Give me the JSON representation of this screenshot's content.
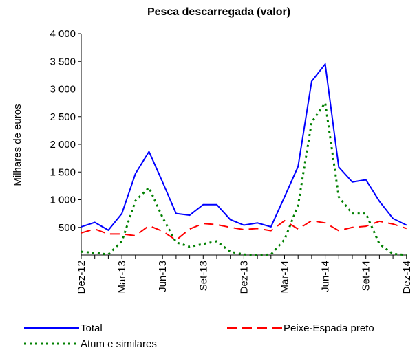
{
  "chart_data": {
    "type": "line",
    "title": "Pesca descarregada (valor)",
    "y_label": "Milhares de euros",
    "categories": [
      "Dez-12",
      null,
      null,
      "Mar-13",
      null,
      null,
      "Jun-13",
      null,
      null,
      "Set-13",
      null,
      null,
      "Dez-13",
      null,
      null,
      "Mar-14",
      null,
      null,
      "Jun-14",
      null,
      null,
      "Set-14",
      null,
      null,
      "Dez-14"
    ],
    "series": [
      {
        "name": "Total",
        "color": "#0000ff",
        "style": "solid",
        "values": [
          510,
          590,
          450,
          750,
          1470,
          1870,
          1320,
          750,
          720,
          910,
          910,
          640,
          540,
          580,
          510,
          1050,
          1600,
          3140,
          3450,
          1590,
          1320,
          1360,
          970,
          660,
          540
        ]
      },
      {
        "name": "Peixe-Espada preto",
        "color": "#ff0000",
        "style": "dashed",
        "values": [
          400,
          470,
          380,
          380,
          350,
          530,
          430,
          270,
          470,
          570,
          550,
          500,
          460,
          480,
          440,
          620,
          470,
          620,
          580,
          440,
          500,
          520,
          610,
          560,
          480
        ]
      },
      {
        "name": "Atum e similares",
        "color": "#008000",
        "style": "dotted",
        "values": [
          60,
          40,
          10,
          250,
          980,
          1220,
          680,
          230,
          150,
          200,
          250,
          60,
          10,
          0,
          10,
          280,
          900,
          2400,
          2750,
          1050,
          750,
          750,
          200,
          20,
          0
        ]
      }
    ],
    "ylim": [
      0,
      4000
    ],
    "yticks": [
      500,
      {
        "value": 1000,
        "label": "1 000"
      },
      {
        "value": 1500,
        "label": "1 500"
      },
      {
        "value": 2000,
        "label": "2 000"
      },
      {
        "value": 2500,
        "label": "2 500"
      },
      {
        "value": 3000,
        "label": "3 000"
      },
      {
        "value": 3500,
        "label": "3 500"
      },
      {
        "value": 4000,
        "label": "4 000"
      }
    ],
    "grid": false,
    "legend": "bottom"
  }
}
